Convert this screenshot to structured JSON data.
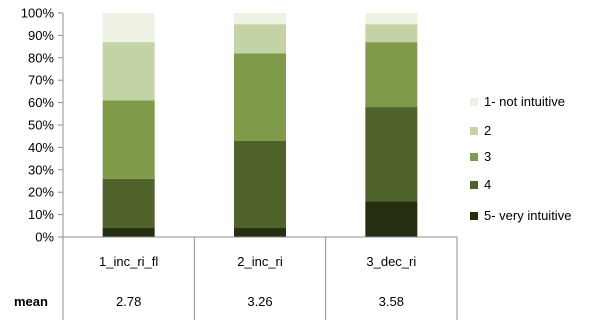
{
  "chart_data": {
    "type": "bar",
    "stacked": true,
    "percent": true,
    "categories": [
      "1_inc_ri_fl",
      "2_inc_ri",
      "3_dec_ri"
    ],
    "series": [
      {
        "name": "5- very intuitive",
        "color": "#262e12",
        "values": [
          4,
          4,
          16
        ]
      },
      {
        "name": "4",
        "color": "#4f6229",
        "values": [
          22,
          39,
          42
        ]
      },
      {
        "name": "3",
        "color": "#7f9b4a",
        "values": [
          35,
          39,
          29
        ]
      },
      {
        "name": "2",
        "color": "#c3d3a5",
        "values": [
          26,
          13,
          8
        ]
      },
      {
        "name": "1- not intuitive",
        "color": "#eef2e4",
        "values": [
          13,
          5,
          5
        ]
      }
    ],
    "ylim": [
      0,
      100
    ],
    "yticks": [
      "0%",
      "10%",
      "20%",
      "30%",
      "40%",
      "50%",
      "60%",
      "70%",
      "80%",
      "90%",
      "100%"
    ],
    "legend": "right",
    "grid": false
  },
  "table": {
    "row_label": "mean",
    "means": [
      "2.78",
      "3.26",
      "3.58"
    ]
  }
}
